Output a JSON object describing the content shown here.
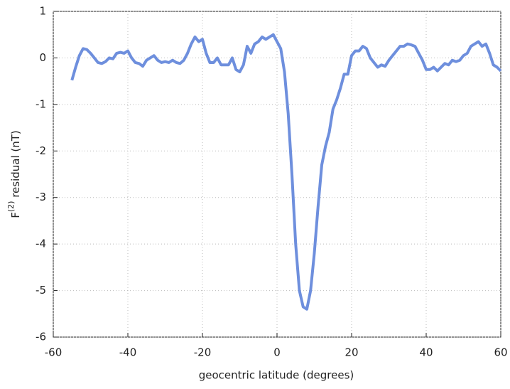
{
  "chart_data": {
    "type": "line",
    "xlabel": "geocentric latitude (degrees)",
    "ylabel": [
      "F",
      "(2)",
      " residual (nT)"
    ],
    "xlim": [
      -60,
      60
    ],
    "xticks": [
      -60,
      -40,
      -20,
      0,
      20,
      40,
      60
    ],
    "ylim": [
      -6,
      1
    ],
    "yticks": [
      -6,
      -5,
      -4,
      -3,
      -2,
      -1,
      0,
      1
    ],
    "grid": true,
    "series": [
      {
        "color": "#6e8fdd",
        "x": [
          -55,
          -54,
          -53,
          -52,
          -51,
          -50,
          -49,
          -48,
          -47,
          -46,
          -45,
          -44,
          -43,
          -42,
          -41,
          -40,
          -39,
          -38,
          -37,
          -36,
          -35,
          -34,
          -33,
          -32,
          -31,
          -30,
          -29,
          -28,
          -27,
          -26,
          -25,
          -24,
          -23,
          -22,
          -21,
          -20,
          -19,
          -18,
          -17,
          -16,
          -15,
          -14,
          -13,
          -12,
          -11,
          -10,
          -9,
          -8,
          -7,
          -6,
          -5,
          -4,
          -3,
          -2,
          -1,
          0,
          1,
          2,
          3,
          4,
          5,
          6,
          7,
          8,
          9,
          10,
          11,
          12,
          13,
          14,
          15,
          16,
          17,
          18,
          19,
          20,
          21,
          22,
          23,
          24,
          25,
          26,
          27,
          28,
          29,
          30,
          31,
          32,
          33,
          34,
          35,
          36,
          37,
          38,
          39,
          40,
          41,
          42,
          43,
          44,
          45,
          46,
          47,
          48,
          49,
          50,
          51,
          52,
          53,
          54,
          55,
          56,
          57,
          58,
          59,
          60
        ],
        "values": [
          -0.48,
          -0.2,
          0.05,
          0.2,
          0.18,
          0.1,
          0.0,
          -0.1,
          -0.12,
          -0.08,
          0.0,
          -0.02,
          0.1,
          0.12,
          0.1,
          0.15,
          0.0,
          -0.1,
          -0.12,
          -0.18,
          -0.05,
          0.0,
          0.05,
          -0.05,
          -0.1,
          -0.08,
          -0.1,
          -0.05,
          -0.1,
          -0.12,
          -0.05,
          0.1,
          0.3,
          0.45,
          0.35,
          0.4,
          0.1,
          -0.1,
          -0.1,
          0.0,
          -0.15,
          -0.15,
          -0.15,
          0.0,
          -0.25,
          -0.3,
          -0.15,
          0.25,
          0.1,
          0.3,
          0.35,
          0.45,
          0.4,
          0.45,
          0.5,
          0.35,
          0.2,
          -0.3,
          -1.2,
          -2.5,
          -4.0,
          -5.0,
          -5.35,
          -5.4,
          -5.0,
          -4.2,
          -3.2,
          -2.3,
          -1.9,
          -1.6,
          -1.1,
          -0.9,
          -0.65,
          -0.35,
          -0.35,
          0.05,
          0.15,
          0.15,
          0.25,
          0.2,
          0.0,
          -0.1,
          -0.2,
          -0.15,
          -0.18,
          -0.05,
          0.05,
          0.15,
          0.25,
          0.25,
          0.3,
          0.28,
          0.25,
          0.1,
          -0.05,
          -0.25,
          -0.25,
          -0.2,
          -0.28,
          -0.2,
          -0.12,
          -0.15,
          -0.05,
          -0.08,
          -0.05,
          0.05,
          0.1,
          0.25,
          0.3,
          0.35,
          0.25,
          0.3,
          0.1,
          -0.15,
          -0.2,
          -0.28
        ]
      }
    ]
  }
}
